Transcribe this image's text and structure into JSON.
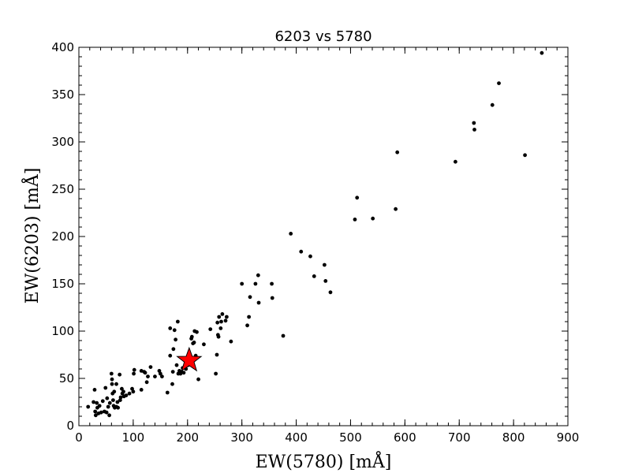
{
  "chart_data": {
    "type": "scatter",
    "title": "6203 vs 5780",
    "xlabel": "EW(5780) [mÅ]",
    "ylabel": "EW(6203) [mÅ]",
    "xlim": [
      0,
      900
    ],
    "ylim": [
      0,
      400
    ],
    "xticks": [
      0,
      100,
      200,
      300,
      400,
      500,
      600,
      700,
      800,
      900
    ],
    "yticks": [
      0,
      50,
      100,
      150,
      200,
      250,
      300,
      350,
      400
    ],
    "grid": false,
    "marker_color": "#000000",
    "highlight_color": "#ff0000",
    "series": [
      {
        "marker": "dot",
        "points": [
          [
            17,
            20
          ],
          [
            27,
            25
          ],
          [
            29,
            38
          ],
          [
            30,
            15
          ],
          [
            31,
            11
          ],
          [
            33,
            24
          ],
          [
            34,
            19
          ],
          [
            36,
            13
          ],
          [
            38,
            21
          ],
          [
            41,
            14
          ],
          [
            44,
            26
          ],
          [
            47,
            15
          ],
          [
            49,
            40
          ],
          [
            51,
            14
          ],
          [
            52,
            29
          ],
          [
            54,
            20
          ],
          [
            56,
            11
          ],
          [
            57,
            24
          ],
          [
            60,
            55
          ],
          [
            61,
            49
          ],
          [
            61,
            44
          ],
          [
            62,
            34
          ],
          [
            63,
            27
          ],
          [
            64,
            21
          ],
          [
            65,
            36
          ],
          [
            66,
            19
          ],
          [
            69,
            44
          ],
          [
            69,
            20
          ],
          [
            71,
            25
          ],
          [
            72,
            19
          ],
          [
            75,
            54
          ],
          [
            76,
            27
          ],
          [
            77,
            30
          ],
          [
            79,
            39
          ],
          [
            80,
            34
          ],
          [
            82,
            36
          ],
          [
            83,
            31
          ],
          [
            87,
            32
          ],
          [
            93,
            34
          ],
          [
            98,
            39
          ],
          [
            100,
            36
          ],
          [
            101,
            55
          ],
          [
            102,
            59
          ],
          [
            115,
            38
          ],
          [
            115,
            58
          ],
          [
            120,
            57
          ],
          [
            122,
            56
          ],
          [
            125,
            46
          ],
          [
            127,
            52
          ],
          [
            132,
            62
          ],
          [
            140,
            52
          ],
          [
            148,
            58
          ],
          [
            150,
            55
          ],
          [
            153,
            52
          ],
          [
            163,
            35
          ],
          [
            168,
            74
          ],
          [
            168,
            103
          ],
          [
            172,
            44
          ],
          [
            173,
            57
          ],
          [
            174,
            81
          ],
          [
            176,
            101
          ],
          [
            178,
            91
          ],
          [
            180,
            64
          ],
          [
            182,
            110
          ],
          [
            183,
            55
          ],
          [
            185,
            58
          ],
          [
            187,
            55
          ],
          [
            189,
            57
          ],
          [
            191,
            61
          ],
          [
            193,
            56
          ],
          [
            197,
            60
          ],
          [
            199,
            66
          ],
          [
            201,
            64
          ],
          [
            203,
            70
          ],
          [
            205,
            68
          ],
          [
            207,
            92
          ],
          [
            208,
            94
          ],
          [
            210,
            87
          ],
          [
            212,
            88
          ],
          [
            213,
            100
          ],
          [
            215,
            74
          ],
          [
            217,
            99
          ],
          [
            220,
            49
          ],
          [
            230,
            86
          ],
          [
            242,
            102
          ],
          [
            252,
            55
          ],
          [
            254,
            75
          ],
          [
            255,
            109
          ],
          [
            256,
            96
          ],
          [
            257,
            94
          ],
          [
            258,
            115
          ],
          [
            261,
            103
          ],
          [
            262,
            110
          ],
          [
            264,
            118
          ],
          [
            270,
            111
          ],
          [
            272,
            115
          ],
          [
            280,
            89
          ],
          [
            300,
            150
          ],
          [
            310,
            106
          ],
          [
            313,
            115
          ],
          [
            315,
            136
          ],
          [
            325,
            150
          ],
          [
            330,
            159
          ],
          [
            331,
            130
          ],
          [
            355,
            150
          ],
          [
            356,
            135
          ],
          [
            376,
            95
          ],
          [
            390,
            203
          ],
          [
            409,
            184
          ],
          [
            426,
            179
          ],
          [
            433,
            158
          ],
          [
            452,
            170
          ],
          [
            454,
            153
          ],
          [
            463,
            141
          ],
          [
            508,
            218
          ],
          [
            512,
            241
          ],
          [
            541,
            219
          ],
          [
            583,
            229
          ],
          [
            586,
            289
          ],
          [
            693,
            279
          ],
          [
            727,
            320
          ],
          [
            728,
            313
          ],
          [
            761,
            339
          ],
          [
            773,
            362
          ],
          [
            821,
            286
          ],
          [
            852,
            394
          ]
        ]
      },
      {
        "marker": "star",
        "points": [
          [
            203,
            69
          ]
        ]
      }
    ]
  }
}
